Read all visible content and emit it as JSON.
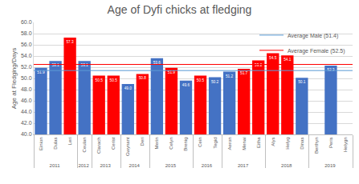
{
  "chart_data": {
    "type": "bar",
    "title": "Age of Dyfi chicks at fledging",
    "y_label": "Age at Fledging/Days",
    "categories": [
      "Einion",
      "Dulas",
      "Leri",
      "Ceulan",
      "Clarach",
      "Cerist",
      "Gwynant",
      "Deri",
      "Merin",
      "Celyn",
      "Brenig",
      "Cein",
      "Tegid",
      "Aeron",
      "Menai",
      "Eitha",
      "Alys",
      "Helyg",
      "Dinas",
      "Berthyn",
      "Peris",
      "Helygn"
    ],
    "category_groups": [
      "2011",
      "2011",
      "2011",
      "2012",
      "2013",
      "2013",
      "2014",
      "2014",
      "2015",
      "2015",
      "2015",
      "2016",
      "2016",
      "2017",
      "2017",
      "2017",
      "2018",
      "2018",
      "2018",
      "2019",
      "2019",
      "2019"
    ],
    "values": [
      51.9,
      53.1,
      57.3,
      53.1,
      50.5,
      50.5,
      49.0,
      50.8,
      53.6,
      51.9,
      49.6,
      50.5,
      50.2,
      51.2,
      51.7,
      53.2,
      54.5,
      54.1,
      50.1,
      null,
      52.3,
      null
    ],
    "value_labels": [
      "51.9",
      "53.1",
      "57.3",
      "53.1",
      "50.5",
      "50.5",
      "49.0",
      "50.8",
      "53.6",
      "51.9",
      "49.6",
      "50.5",
      "50.2",
      "51.2",
      "51.7",
      "53.2",
      "54.5",
      "54.1",
      "50.1",
      null,
      "52.3",
      null
    ],
    "colors": [
      "#4472c4",
      "#4472c4",
      "#ff0000",
      "#4472c4",
      "#ff0000",
      "#ff0000",
      "#4472c4",
      "#ff0000",
      "#4472c4",
      "#ff0000",
      "#4472c4",
      "#ff0000",
      "#4472c4",
      "#4472c4",
      "#ff0000",
      "#ff0000",
      "#ff0000",
      "#ff0000",
      "#4472c4",
      "#4472c4",
      "#4472c4",
      "#4472c4"
    ],
    "data_labels": true,
    "reference_lines": [
      {
        "name": "Average Male (51.4)",
        "value": 51.4,
        "color": "#5b9bd5"
      },
      {
        "name": "Average Female (52.5)",
        "value": 52.5,
        "color": "#ff0000"
      }
    ],
    "ylim": [
      40,
      60
    ],
    "yticks": [
      {
        "value": 40,
        "label": "40.0"
      },
      {
        "value": 42,
        "label": "42.0"
      },
      {
        "value": 44,
        "label": "44.0"
      },
      {
        "value": 46,
        "label": "46.0"
      },
      {
        "value": 48,
        "label": "48.0"
      },
      {
        "value": 50,
        "label": "50.0"
      },
      {
        "value": 52,
        "label": "52.0"
      },
      {
        "value": 54,
        "label": "54.0"
      },
      {
        "value": 56,
        "label": "56.0"
      },
      {
        "value": 58,
        "label": "58.0"
      },
      {
        "value": 60,
        "label": "60.0"
      }
    ],
    "grid": true,
    "legend": "top right"
  }
}
